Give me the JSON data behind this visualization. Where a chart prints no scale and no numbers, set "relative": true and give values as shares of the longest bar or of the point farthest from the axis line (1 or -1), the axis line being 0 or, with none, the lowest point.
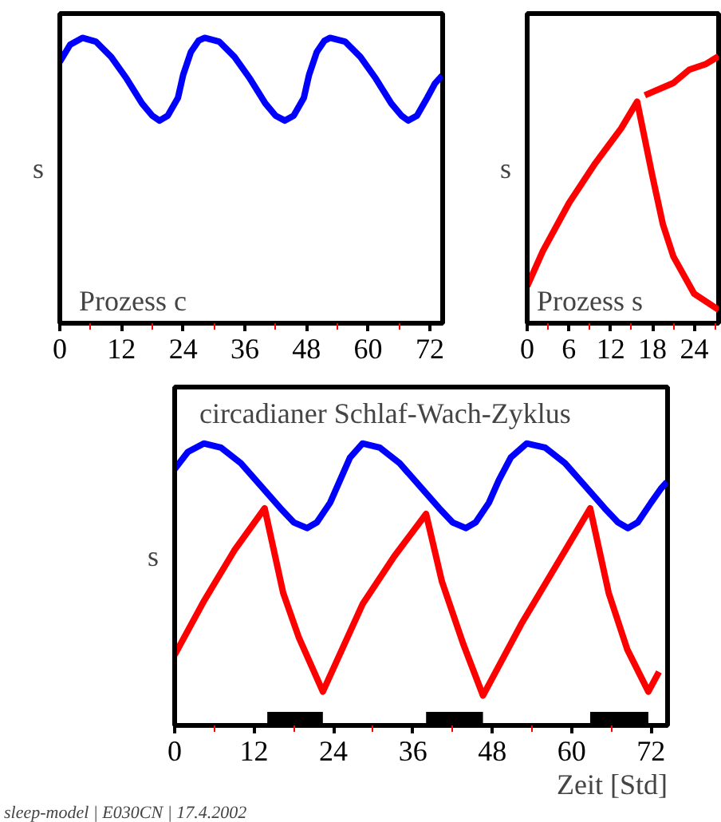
{
  "chart_data": [
    {
      "type": "line",
      "title": "Prozess c",
      "ylabel": "s",
      "relative": true,
      "xlim": [
        0,
        74.5
      ],
      "xticks": [
        0,
        12,
        24,
        36,
        48,
        60,
        72
      ],
      "grid": false,
      "series": [
        {
          "color": "#0000ff",
          "x": [
            0,
            2,
            4.4,
            7,
            10,
            13,
            16,
            18,
            19.4,
            21,
            23,
            24,
            25.5,
            27,
            28.2,
            31,
            34,
            37,
            40,
            42,
            43.8,
            45.5,
            47.5,
            48.5,
            50,
            51.5,
            52.6,
            55.5,
            58.5,
            61.5,
            64.5,
            66.5,
            67.8,
            69.5,
            71.5,
            73,
            74.4
          ],
          "values": [
            0.916,
            0.976,
            1.0,
            0.987,
            0.933,
            0.857,
            0.77,
            0.727,
            0.71,
            0.727,
            0.79,
            0.87,
            0.95,
            0.99,
            1.0,
            0.987,
            0.933,
            0.857,
            0.77,
            0.727,
            0.71,
            0.727,
            0.79,
            0.87,
            0.95,
            0.99,
            1.0,
            0.987,
            0.933,
            0.857,
            0.77,
            0.727,
            0.71,
            0.727,
            0.79,
            0.84,
            0.868
          ]
        }
      ]
    },
    {
      "type": "line",
      "title": "Prozess s",
      "ylabel": "s",
      "relative": true,
      "xlim": [
        0,
        27.5
      ],
      "xticks": [
        0,
        6,
        12,
        18,
        24
      ],
      "grid": false,
      "series": [
        {
          "color": "#ff0000",
          "x": [
            0,
            2.25,
            6,
            9.8,
            13.5,
            15.8,
            18,
            19.5,
            21,
            24,
            27.5
          ],
          "values": [
            0.139,
            0.27,
            0.45,
            0.6,
            0.73,
            0.83,
            0.55,
            0.37,
            0.25,
            0.11,
            0.05
          ]
        },
        {
          "color": "#ff0000",
          "x": [
            16.9,
            21,
            23.3,
            25.6,
            27.5
          ],
          "values": [
            0.854,
            0.9,
            0.95,
            0.97,
            1.0
          ]
        }
      ]
    },
    {
      "type": "line",
      "title": "circadianer Schlaf-Wach-Zyklus",
      "ylabel": "s",
      "xlabel": "Zeit [Std]",
      "relative": true,
      "xlim": [
        0,
        74.5
      ],
      "xticks": [
        0,
        12,
        24,
        36,
        48,
        60,
        72
      ],
      "grid": false,
      "series": [
        {
          "color": "#0000ff",
          "x": [
            0,
            2,
            4.4,
            7,
            10,
            13,
            16,
            18,
            20,
            21.5,
            23.5,
            25,
            26.5,
            28.4,
            31,
            34,
            37,
            40,
            42,
            44,
            45.5,
            47.5,
            49,
            50.8,
            53.2,
            56,
            59,
            62,
            65,
            67,
            68.5,
            70,
            72,
            73.5,
            74.4
          ],
          "values": [
            0.909,
            0.97,
            1.0,
            0.985,
            0.93,
            0.85,
            0.77,
            0.72,
            0.7,
            0.72,
            0.79,
            0.87,
            0.95,
            1.0,
            0.985,
            0.93,
            0.85,
            0.77,
            0.72,
            0.7,
            0.72,
            0.79,
            0.87,
            0.95,
            1.0,
            0.985,
            0.93,
            0.85,
            0.77,
            0.72,
            0.7,
            0.72,
            0.79,
            0.84,
            0.863
          ]
        },
        {
          "color": "#ff0000",
          "x": [
            0,
            4.4,
            9,
            13.6,
            16.4,
            18.8,
            22.4,
            28.4,
            33.2,
            38,
            40.4,
            43.6,
            46.6,
            52.4,
            58,
            62.8,
            65.6,
            68.4,
            71.6,
            73.2
          ],
          "values": [
            0.25,
            0.44,
            0.62,
            0.77,
            0.47,
            0.31,
            0.12,
            0.43,
            0.6,
            0.75,
            0.51,
            0.29,
            0.106,
            0.36,
            0.58,
            0.77,
            0.47,
            0.27,
            0.12,
            0.19
          ]
        }
      ],
      "bands": [
        {
          "axis": "x",
          "from": 14,
          "to": 22.4,
          "color": "#000000"
        },
        {
          "axis": "x",
          "from": 38,
          "to": 46.6,
          "color": "#000000"
        },
        {
          "axis": "x",
          "from": 62.8,
          "to": 71.6,
          "color": "#000000"
        }
      ],
      "annotations": [
        "sleep-model | E030CN | 17.4.2002"
      ]
    }
  ]
}
